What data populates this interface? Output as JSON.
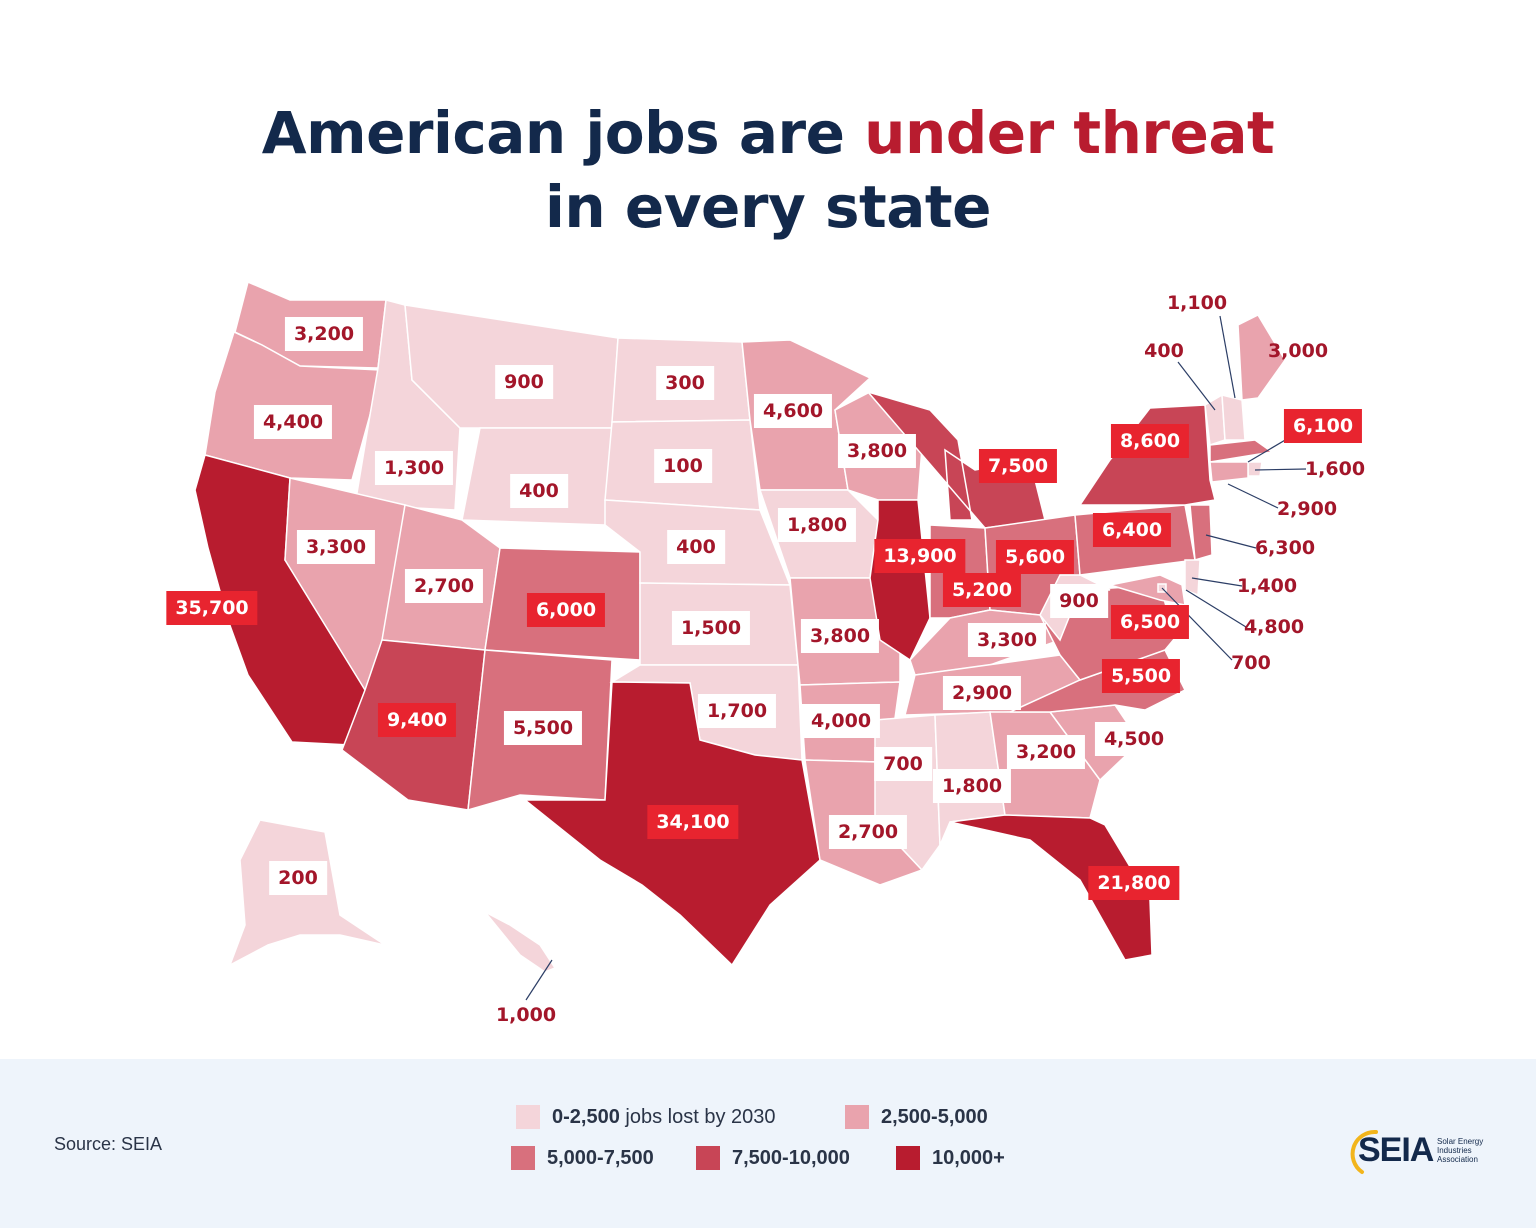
{
  "title": {
    "part1": "American jobs are ",
    "highlight": "under threat",
    "part2": "in every state"
  },
  "colors": {
    "tier1": "#f4d5da",
    "tier2": "#e9a3ad",
    "tier3": "#d8707d",
    "tier4": "#c84556",
    "tier5": "#b81c2f",
    "text_dark": "#13294b",
    "accent": "#b81c2f"
  },
  "states": [
    {
      "value": "3,200",
      "tier": 2
    },
    {
      "value": "4,400",
      "tier": 2
    },
    {
      "value": "35,700",
      "tier": 5
    },
    {
      "value": "1,300",
      "tier": 1
    },
    {
      "value": "3,300",
      "tier": 2
    },
    {
      "value": "900",
      "tier": 1
    },
    {
      "value": "400",
      "tier": 1
    },
    {
      "value": "2,700",
      "tier": 2
    },
    {
      "value": "9,400",
      "tier": 4
    },
    {
      "value": "6,000",
      "tier": 3
    },
    {
      "value": "5,500",
      "tier": 3
    },
    {
      "value": "300",
      "tier": 1
    },
    {
      "value": "100",
      "tier": 1
    },
    {
      "value": "400",
      "tier": 1
    },
    {
      "value": "1,500",
      "tier": 1
    },
    {
      "value": "1,700",
      "tier": 1
    },
    {
      "value": "34,100",
      "tier": 5
    },
    {
      "value": "4,600",
      "tier": 2
    },
    {
      "value": "1,800",
      "tier": 1
    },
    {
      "value": "3,800",
      "tier": 2
    },
    {
      "value": "4,000",
      "tier": 2
    },
    {
      "value": "2,700",
      "tier": 2
    },
    {
      "value": "3,800",
      "tier": 2
    },
    {
      "value": "13,900",
      "tier": 5
    },
    {
      "value": "7,500",
      "tier": 4
    },
    {
      "value": "5,200",
      "tier": 3
    },
    {
      "value": "5,600",
      "tier": 3
    },
    {
      "value": "3,300",
      "tier": 2
    },
    {
      "value": "2,900",
      "tier": 2
    },
    {
      "value": "700",
      "tier": 1
    },
    {
      "value": "1,800",
      "tier": 1
    },
    {
      "value": "3,200",
      "tier": 2
    },
    {
      "value": "21,800",
      "tier": 5
    },
    {
      "value": "4,500",
      "tier": 2
    },
    {
      "value": "5,500",
      "tier": 3
    },
    {
      "value": "6,500",
      "tier": 3
    },
    {
      "value": "900",
      "tier": 1
    },
    {
      "value": "6,400",
      "tier": 3
    },
    {
      "value": "8,600",
      "tier": 4
    },
    {
      "value": "200",
      "tier": 1
    },
    {
      "value": "1,000",
      "tier": 1
    },
    {
      "value": "3,000",
      "tier": 2
    },
    {
      "value": "400",
      "tier": 1
    },
    {
      "value": "1,100",
      "tier": 1
    },
    {
      "value": "6,100",
      "tier": 3
    },
    {
      "value": "1,600",
      "tier": 1
    },
    {
      "value": "2,900",
      "tier": 2
    },
    {
      "value": "6,300",
      "tier": 3
    },
    {
      "value": "1,400",
      "tier": 1
    },
    {
      "value": "4,800",
      "tier": 2
    },
    {
      "value": "700",
      "tier": 1
    }
  ],
  "legend": [
    {
      "range": "0-2,500",
      "suffix": " jobs lost by 2030",
      "tier": 1
    },
    {
      "range": "2,500-5,000",
      "suffix": "",
      "tier": 2
    },
    {
      "range": "5,000-7,500",
      "suffix": "",
      "tier": 3
    },
    {
      "range": "7,500-10,000",
      "suffix": "",
      "tier": 4
    },
    {
      "range": "10,000+",
      "suffix": "",
      "tier": 5
    }
  ],
  "source": "Source: SEIA",
  "logo": {
    "name": "SEIA",
    "subtitle": [
      "Solar Energy",
      "Industries",
      "Association"
    ]
  }
}
